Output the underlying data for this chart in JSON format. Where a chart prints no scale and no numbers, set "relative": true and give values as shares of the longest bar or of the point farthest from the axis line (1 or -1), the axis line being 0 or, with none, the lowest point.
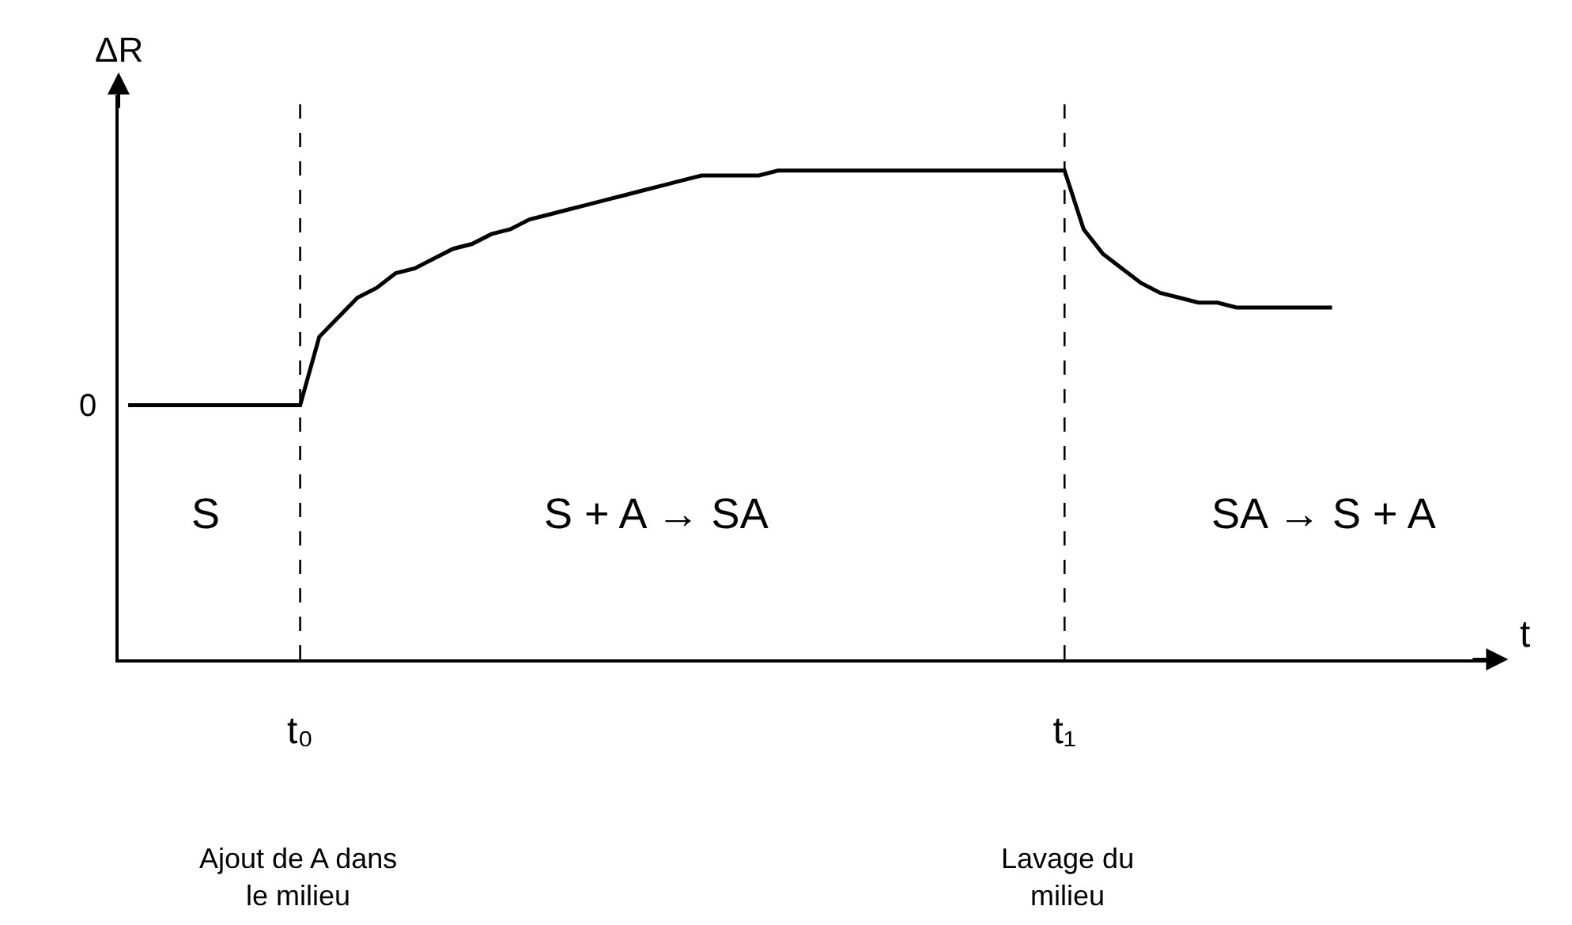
{
  "chart_data": {
    "type": "line",
    "relative": true,
    "xlabel": "t",
    "ylabel": "ΔR",
    "categories": [
      null,
      null,
      null,
      null,
      null,
      null,
      null,
      null,
      null,
      "t₀",
      null,
      null,
      null,
      null,
      null,
      null,
      null,
      null,
      null,
      null,
      null,
      null,
      null,
      null,
      null,
      null,
      null,
      null,
      null,
      null,
      null,
      null,
      null,
      null,
      null,
      null,
      null,
      null,
      null,
      null,
      null,
      null,
      null,
      null,
      null,
      null,
      null,
      null,
      null,
      "t₁",
      null,
      null,
      null,
      null,
      null,
      null,
      null,
      null,
      null,
      null,
      null,
      null,
      null,
      null,
      null,
      null,
      null,
      null,
      null,
      null,
      null,
      null
    ],
    "series": [
      {
        "color": "#000000",
        "values": [
          0.52,
          0.52,
          0.52,
          0.52,
          0.52,
          0.52,
          0.52,
          0.52,
          0.52,
          0.52,
          0.66,
          0.7,
          0.74,
          0.76,
          0.79,
          0.8,
          0.82,
          0.84,
          0.85,
          0.87,
          0.88,
          0.9,
          0.91,
          0.92,
          0.93,
          0.94,
          0.95,
          0.96,
          0.97,
          0.98,
          0.99,
          0.99,
          0.99,
          0.99,
          1.0,
          1.0,
          1.0,
          1.0,
          1.0,
          1.0,
          1.0,
          1.0,
          1.0,
          1.0,
          1.0,
          1.0,
          1.0,
          1.0,
          1.0,
          1.0,
          0.88,
          0.83,
          0.8,
          0.77,
          0.75,
          0.74,
          0.73,
          0.73,
          0.72,
          0.72,
          0.72,
          0.72,
          0.72,
          0.72,
          null,
          null,
          null,
          null,
          null,
          null,
          null,
          null
        ]
      }
    ],
    "ref_lines": [
      {
        "axis": "x",
        "value": "t₀",
        "color": "#000000",
        "line_style": "dashed"
      },
      {
        "axis": "x",
        "value": "t₁",
        "color": "#000000",
        "line_style": "dashed"
      }
    ],
    "annotations": [
      "0",
      "S",
      "S + A → SA",
      "SA → S + A",
      "Ajout de A dans\nle milieu",
      "Lavage du\nmilieu"
    ],
    "grid": false
  }
}
